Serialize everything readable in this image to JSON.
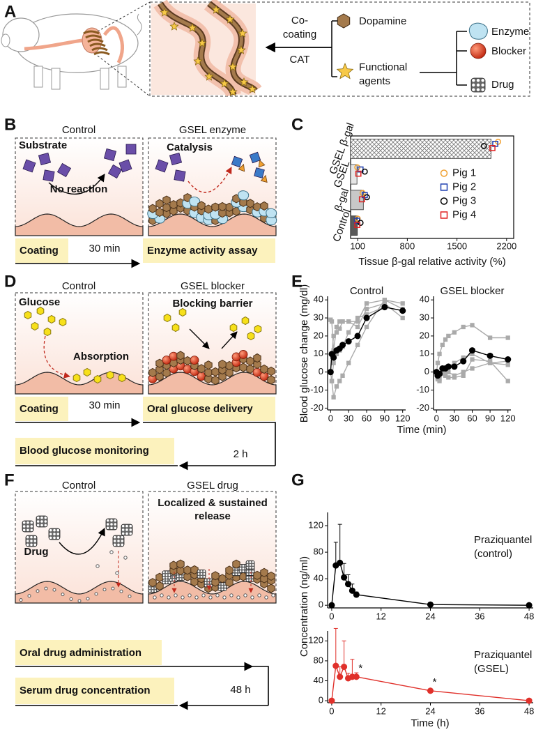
{
  "panels": {
    "A": {
      "label": "A",
      "co": "Co-",
      "coating": "coating",
      "cat": "CAT",
      "dopamine": "Dopamine",
      "functional_agents": [
        "Functional",
        "agents"
      ],
      "enzyme": "Enzyme",
      "blocker": "Blocker",
      "drug": "Drug"
    },
    "B": {
      "label": "B",
      "control": "Control",
      "gsel": "GSEL enzyme",
      "substrate": "Substrate",
      "no_reaction": "No reaction",
      "catalysis": "Catalysis",
      "coating": "Coating",
      "time": "30 min",
      "assay": "Enzyme activity assay"
    },
    "C": {
      "label": "C"
    },
    "D": {
      "label": "D",
      "control": "Control",
      "gsel": "GSEL blocker",
      "glucose": "Glucose",
      "absorption": "Absorption",
      "barrier": "Blocking barrier",
      "coating": "Coating",
      "time1": "30 min",
      "delivery": "Oral glucose delivery",
      "monitoring": "Blood glucose monitoring",
      "time2": "2 h"
    },
    "E": {
      "label": "E"
    },
    "F": {
      "label": "F",
      "control": "Control",
      "gsel": "GSEL drug",
      "drug": "Drug",
      "release": [
        "Localized  & sustained",
        "release"
      ],
      "administration": "Oral drug administration",
      "serum": "Serum drug concentration",
      "time": "48 h"
    },
    "G": {
      "label": "G"
    }
  },
  "chart_data": [
    {
      "type": "bar",
      "orientation": "horizontal",
      "categories": [
        "Control",
        "β-gal",
        "GSEL",
        "GSEL β-gal"
      ],
      "values": [
        95,
        180,
        90,
        1980
      ],
      "bar_colors": [
        "#5a5a5a",
        "#c8c8c8",
        "#e6e6e6",
        "#ffffff"
      ],
      "bar_hatch": [
        false,
        false,
        false,
        true
      ],
      "xlim": [
        0,
        2300
      ],
      "xticks": [
        100,
        800,
        1500,
        2200
      ],
      "xlabel": "Tissue β-gal relative activity (%)",
      "legend": "center-right",
      "series": [
        {
          "name": "Pig 1",
          "color": "#f0a030",
          "marker": "circle",
          "values": [
            100,
            170,
            95,
            2080
          ]
        },
        {
          "name": "Pig 2",
          "color": "#2040b0",
          "marker": "square",
          "values": [
            90,
            200,
            140,
            2040
          ]
        },
        {
          "name": "Pig 3",
          "color": "#000000",
          "marker": "circle",
          "values": [
            140,
            230,
            200,
            1880
          ]
        },
        {
          "name": "Pig 4",
          "color": "#e02020",
          "marker": "square",
          "values": [
            95,
            160,
            110,
            2000
          ]
        }
      ]
    },
    {
      "type": "line",
      "title": "Control",
      "ylabel": "Blood glucose change (mg/dl)",
      "xlabel": "Time (min)",
      "x": [
        0,
        2,
        5,
        10,
        15,
        20,
        30,
        45,
        60,
        90,
        120
      ],
      "xlim": [
        -5,
        125
      ],
      "xticks": [
        0,
        30,
        60,
        90,
        120
      ],
      "ylim": [
        -21,
        42
      ],
      "yticks": [
        -20,
        -10,
        0,
        10,
        20,
        30,
        40
      ],
      "series": [
        {
          "color": "#aaaaaa",
          "marker": "square",
          "values": [
            29,
            28,
            12,
            25,
            28,
            28,
            28,
            25,
            35,
            38,
            30
          ]
        },
        {
          "color": "#aaaaaa",
          "marker": "square",
          "values": [
            0,
            -5,
            -14,
            -8,
            -5,
            -2,
            5,
            15,
            25,
            40,
            35
          ]
        },
        {
          "color": "#aaaaaa",
          "marker": "square",
          "values": [
            0,
            10,
            20,
            22,
            24,
            28,
            28,
            28,
            38,
            40,
            38
          ]
        },
        {
          "color": "#aaaaaa",
          "marker": "square",
          "values": [
            0,
            -5,
            5,
            10,
            12,
            14,
            22,
            30,
            32,
            36,
            34
          ]
        },
        {
          "color": "#000000",
          "marker": "circle",
          "values": [
            0,
            10,
            8,
            12,
            13,
            15,
            17,
            20,
            30,
            36,
            34
          ]
        }
      ]
    },
    {
      "type": "line",
      "title": "GSEL blocker",
      "x": [
        0,
        2,
        5,
        10,
        15,
        20,
        30,
        45,
        60,
        90,
        120
      ],
      "xlim": [
        -5,
        125
      ],
      "xticks": [
        0,
        30,
        60,
        90,
        120
      ],
      "ylim": [
        -21,
        42
      ],
      "yticks": [
        -20,
        -10,
        0,
        10,
        20,
        30,
        40
      ],
      "series": [
        {
          "color": "#aaaaaa",
          "marker": "square",
          "values": [
            0,
            5,
            10,
            15,
            18,
            20,
            22,
            25,
            26,
            19,
            19
          ]
        },
        {
          "color": "#aaaaaa",
          "marker": "square",
          "values": [
            0,
            -2,
            -5,
            0,
            -2,
            -3,
            -3,
            -2,
            7,
            6,
            -5
          ]
        },
        {
          "color": "#aaaaaa",
          "marker": "square",
          "values": [
            0,
            -4,
            -2,
            1,
            2,
            3,
            5,
            8,
            10,
            5,
            6
          ]
        },
        {
          "color": "#aaaaaa",
          "marker": "square",
          "values": [
            0,
            -3,
            -4,
            -1,
            0,
            0,
            -2,
            0,
            2,
            5,
            4
          ]
        },
        {
          "color": "#000000",
          "marker": "circle",
          "values": [
            0,
            -2,
            -1,
            2,
            2,
            3,
            3,
            6,
            12,
            9,
            7
          ]
        }
      ]
    },
    {
      "type": "line",
      "annotation": [
        "Praziquantel",
        "(control)"
      ],
      "ylabel": "Concentration (ng/ml)",
      "x": [
        0,
        1,
        2,
        3,
        4,
        5,
        6,
        24,
        48
      ],
      "xlim": [
        -1,
        49
      ],
      "xticks": [
        0,
        12,
        24,
        36,
        48
      ],
      "ylim": [
        -4,
        140
      ],
      "yticks": [
        0,
        40,
        80,
        120
      ],
      "series": [
        {
          "color": "#000000",
          "marker": "circle",
          "values": [
            0,
            60,
            64,
            42,
            32,
            22,
            16,
            1,
            0
          ],
          "errors": [
            0,
            35,
            58,
            21,
            14,
            10,
            4,
            0,
            0
          ]
        }
      ]
    },
    {
      "type": "line",
      "annotation": [
        "Praziquantel",
        "(GSEL)"
      ],
      "xlabel": "Time (h)",
      "x": [
        0,
        1,
        2,
        3,
        4,
        5,
        6,
        24,
        48
      ],
      "xlim": [
        -1,
        49
      ],
      "xticks": [
        0,
        12,
        24,
        36,
        48
      ],
      "ylim": [
        -4,
        140
      ],
      "yticks": [
        0,
        40,
        80,
        120
      ],
      "series": [
        {
          "color": "#e0302a",
          "marker": "circle",
          "values": [
            0,
            70,
            48,
            68,
            45,
            48,
            48,
            20,
            0
          ],
          "errors": [
            0,
            75,
            20,
            52,
            10,
            35,
            8,
            4,
            0
          ],
          "significance": [
            null,
            null,
            null,
            null,
            null,
            null,
            "*",
            "*",
            null
          ]
        }
      ]
    }
  ]
}
